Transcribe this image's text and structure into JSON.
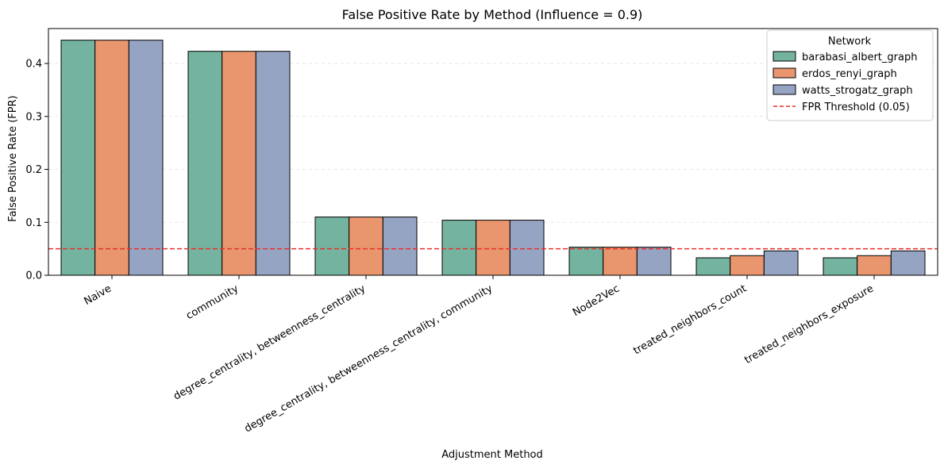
{
  "chart_data": {
    "type": "bar",
    "title": "False Positive Rate by Method (Influence = 0.9)",
    "xlabel": "Adjustment Method",
    "ylabel": "False Positive Rate (FPR)",
    "ylim": [
      0,
      0.466
    ],
    "yticks": [
      "0.0",
      "0.1",
      "0.2",
      "0.3",
      "0.4"
    ],
    "grid": "y-dashed",
    "categories": [
      "Naive",
      "community",
      "degree_centrality, betweenness_centrality",
      "degree_centrality, betweenness_centrality, community",
      "Node2Vec",
      "treated_neighbors_count",
      "treated_neighbors_exposure"
    ],
    "series": [
      {
        "name": "barabasi_albert_graph",
        "color": "#73b3a0",
        "values": [
          0.444,
          0.423,
          0.11,
          0.104,
          0.053,
          0.033,
          0.033
        ]
      },
      {
        "name": "erdos_renyi_graph",
        "color": "#e9966f",
        "values": [
          0.444,
          0.423,
          0.11,
          0.104,
          0.053,
          0.037,
          0.037
        ]
      },
      {
        "name": "watts_strogatz_graph",
        "color": "#96a4c3",
        "values": [
          0.444,
          0.423,
          0.11,
          0.104,
          0.053,
          0.046,
          0.046
        ]
      }
    ],
    "threshold": {
      "label": "FPR Threshold (0.05)",
      "value": 0.05,
      "color": "#e8302a"
    },
    "legend": {
      "title": "Network",
      "placement": "top-right"
    }
  }
}
